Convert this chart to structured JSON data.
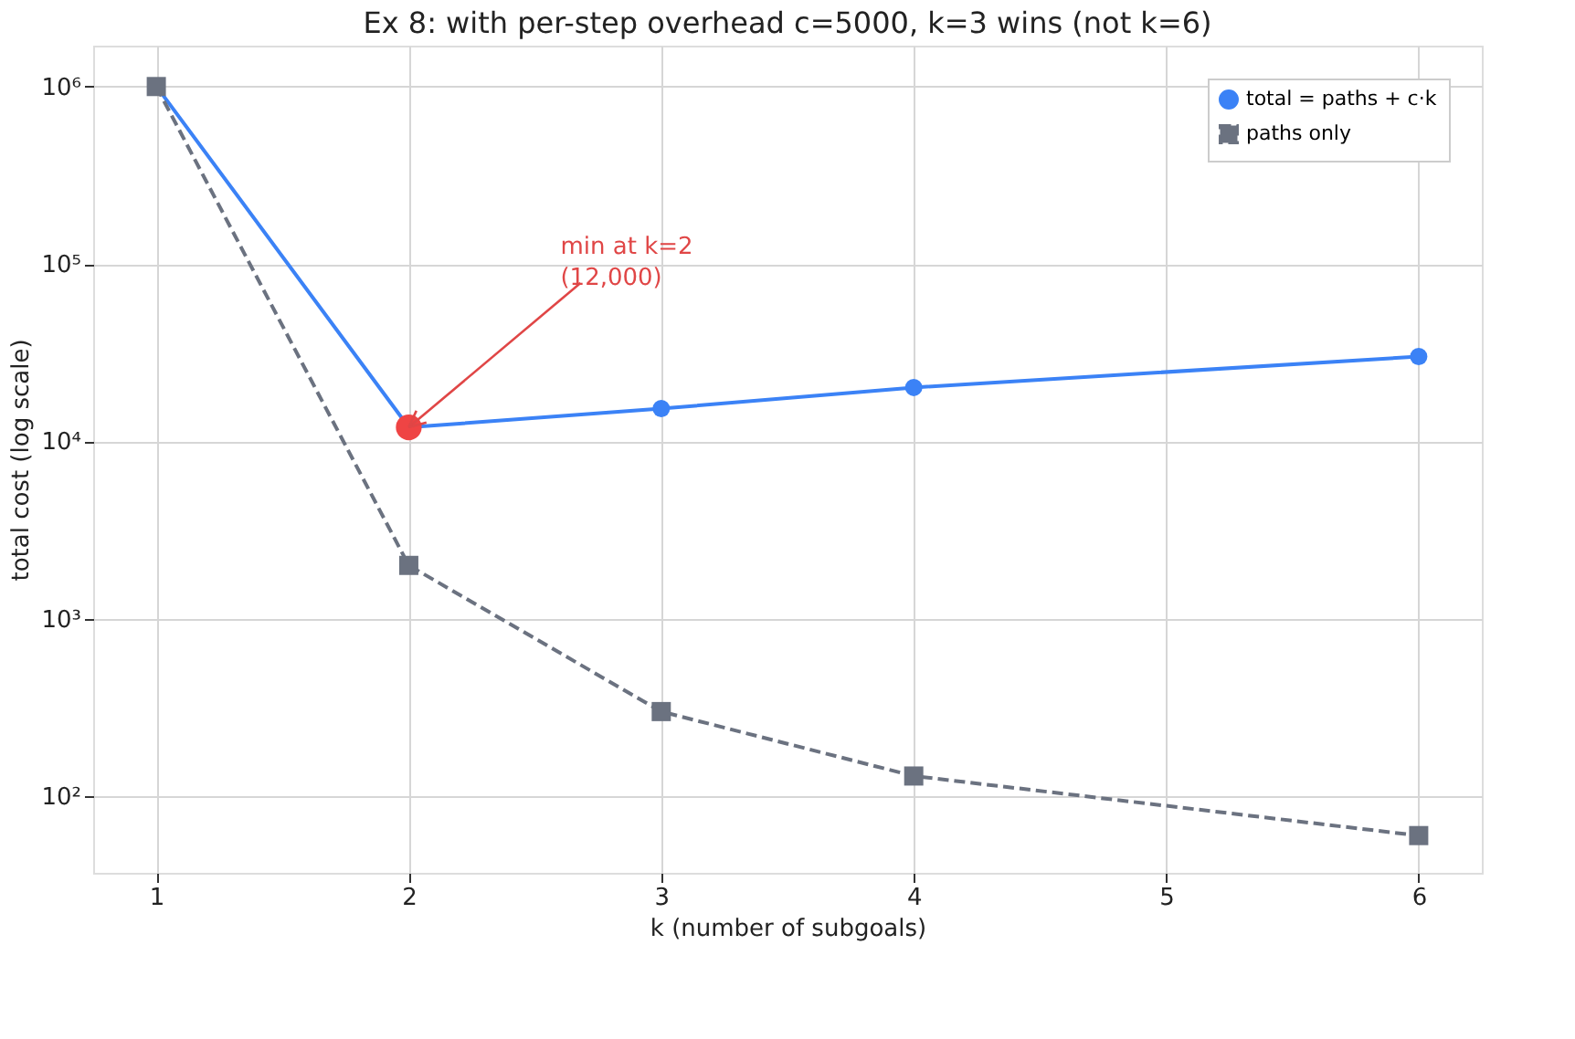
{
  "chart_data": {
    "type": "line",
    "title": "Ex 8: with per-step overhead c=5000, k=3 wins (not k=6)",
    "xlabel": "k  (number of subgoals)",
    "ylabel": "total cost  (log scale)",
    "series": [
      {
        "name": "total = paths + c·k",
        "color": "#3b82f6",
        "marker": "circle",
        "line_style": "solid",
        "x": [
          1,
          2,
          3,
          4,
          6
        ],
        "values": [
          1005000,
          12000,
          15300,
          20130,
          30060
        ]
      },
      {
        "name": "paths only",
        "color": "#6b7280",
        "marker": "square",
        "line_style": "dashed",
        "x": [
          1,
          2,
          3,
          4,
          6
        ],
        "values": [
          1000000,
          2000,
          300,
          130,
          60
        ]
      },
      {
        "type": "scatter",
        "color": "#ef4444",
        "marker": "circle",
        "x": [
          2
        ],
        "values": [
          12000
        ]
      }
    ],
    "annotations": [
      {
        "text": "min at k=2\n(12,000)",
        "x": 2,
        "y": 12000
      }
    ],
    "xlim": [
      0.75,
      6.25
    ],
    "xticks": [
      1,
      2,
      3,
      4,
      5,
      6
    ],
    "ylim": [
      37,
      1700000
    ],
    "yticks": [
      {
        "value": 100,
        "label": "10²"
      },
      {
        "value": 1000,
        "label": "10³"
      },
      {
        "value": 10000,
        "label": "10⁴"
      },
      {
        "value": 100000,
        "label": "10⁵"
      },
      {
        "value": 1000000,
        "label": "10⁶"
      }
    ],
    "log": "y",
    "grid": true,
    "legend": "top right"
  }
}
